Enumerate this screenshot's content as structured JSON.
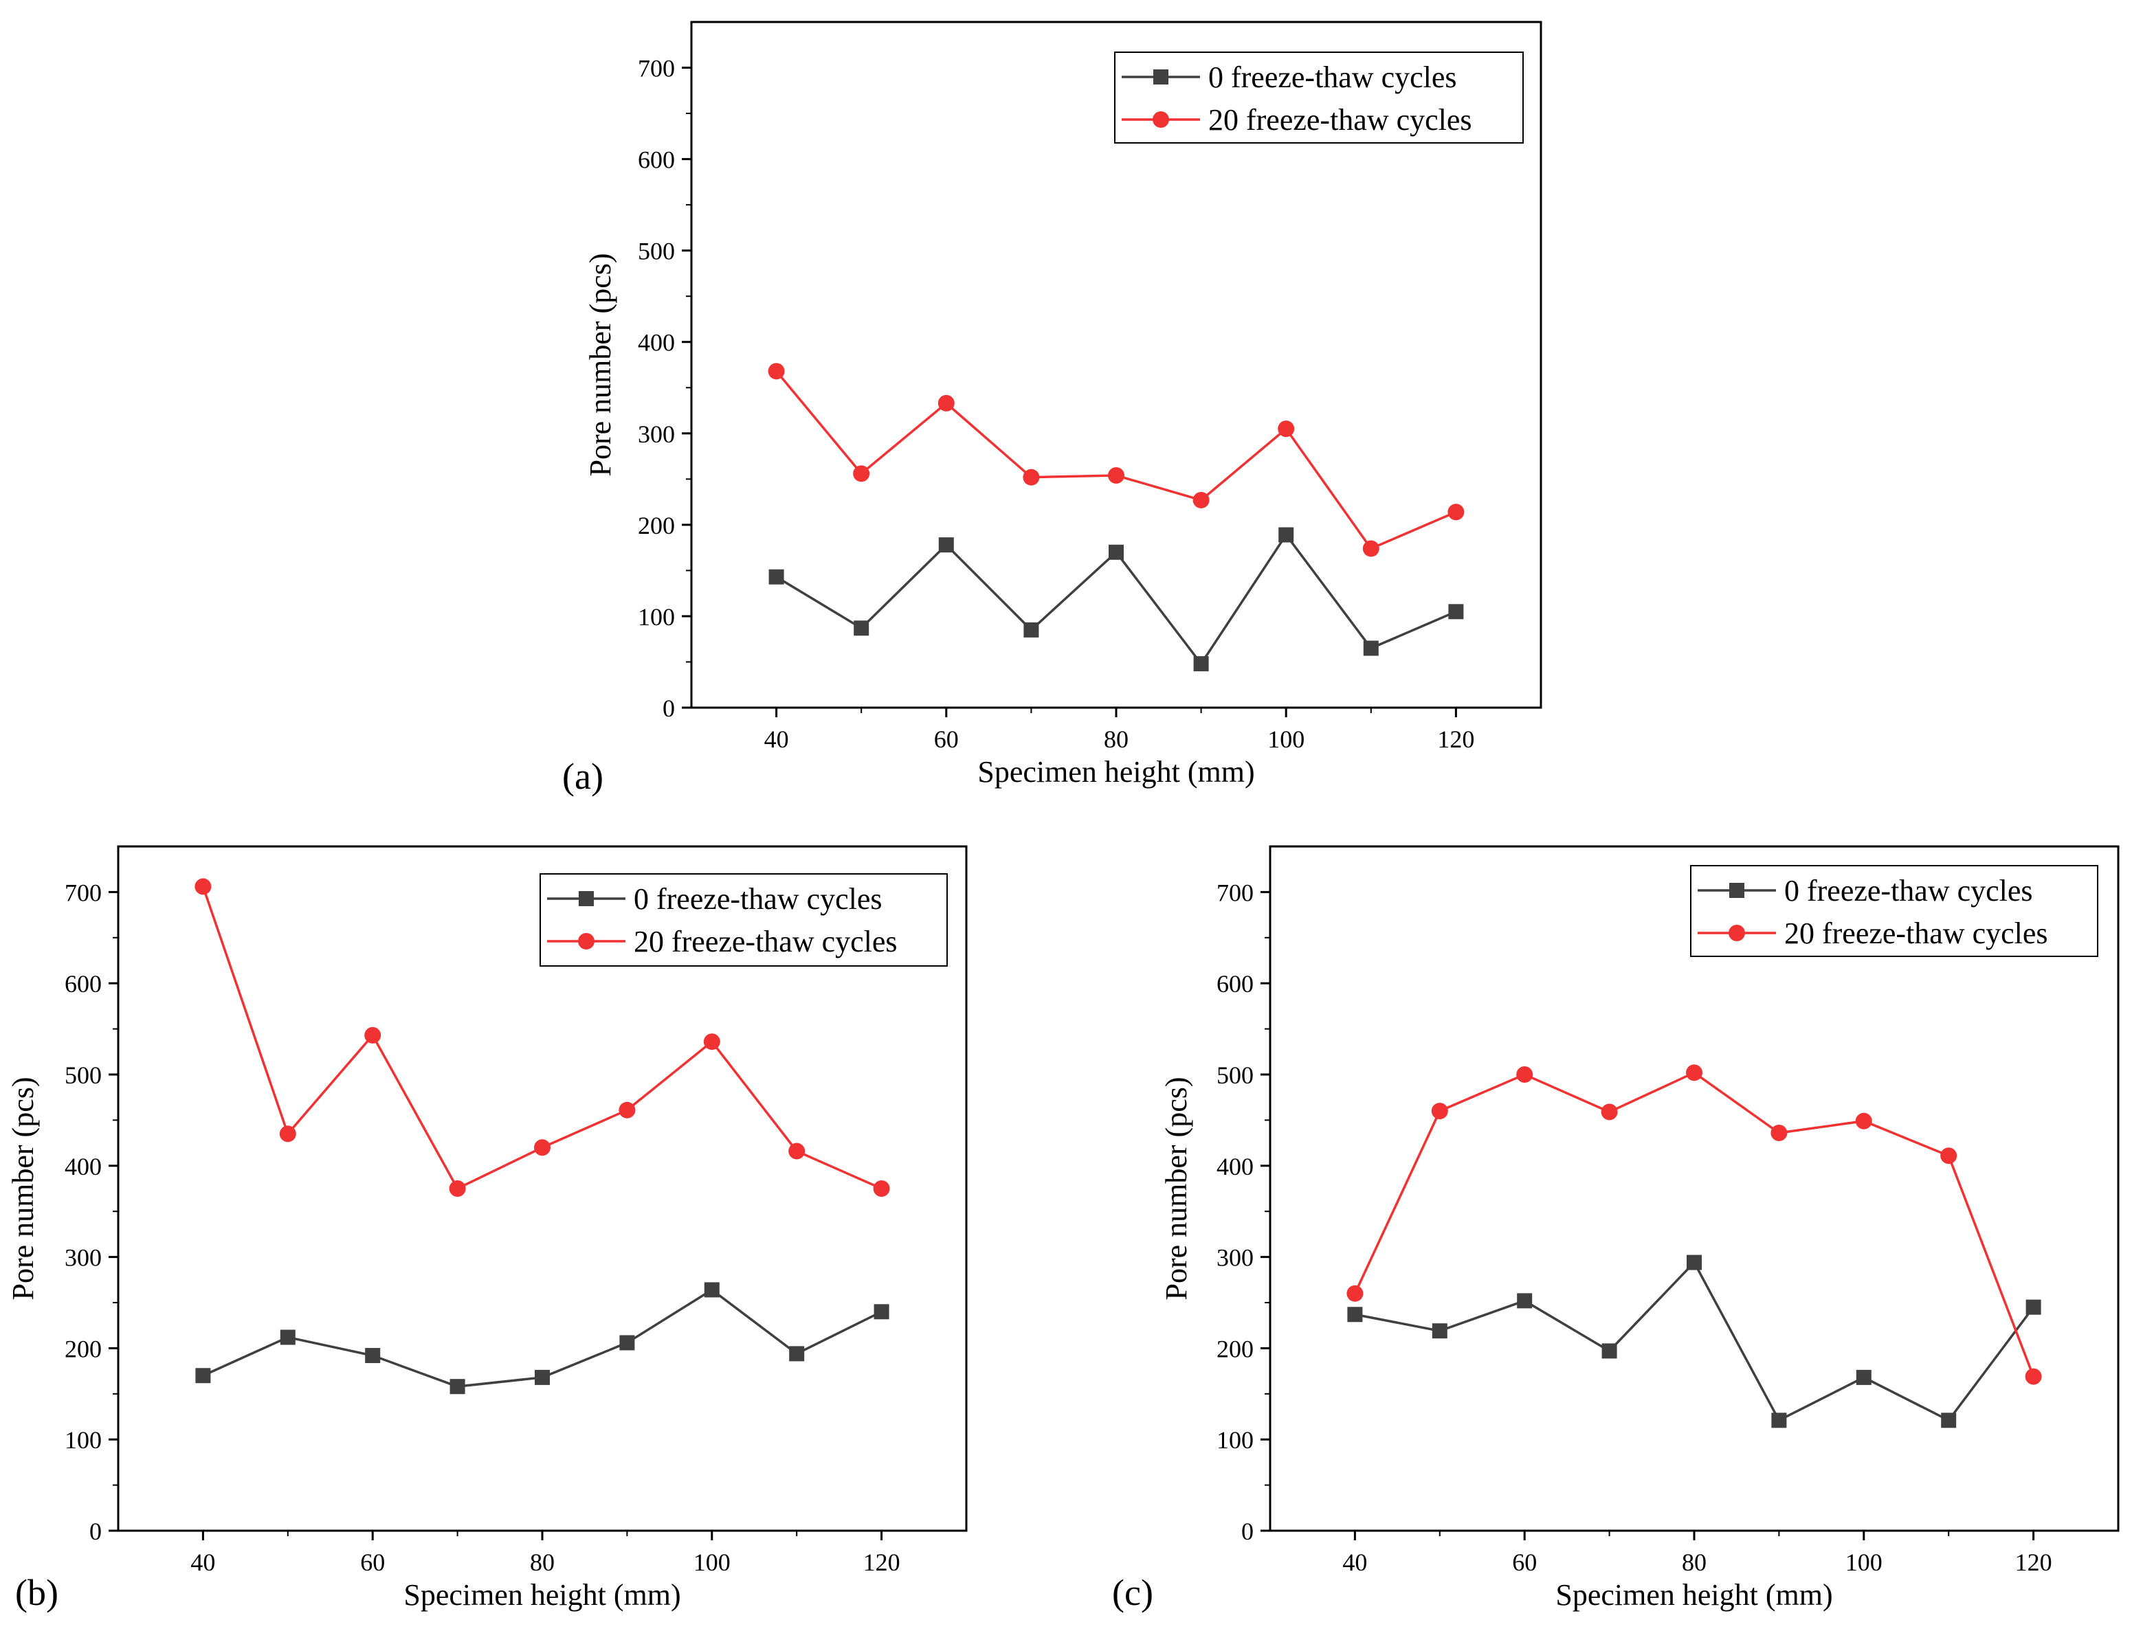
{
  "chart_data": [
    {
      "type": "line",
      "panel_label": "(a)",
      "title": "",
      "xlabel": "Specimen height (mm)",
      "ylabel": "Pore number (pcs)",
      "xlim": [
        30,
        130
      ],
      "ylim": [
        0,
        750
      ],
      "xticks": [
        40,
        60,
        80,
        100,
        120
      ],
      "yticks": [
        0,
        100,
        200,
        300,
        400,
        500,
        600,
        700
      ],
      "x": [
        40,
        50,
        60,
        70,
        80,
        90,
        100,
        110,
        120
      ],
      "legend_position": "top-right",
      "series": [
        {
          "name": "0 freeze-thaw cycles",
          "color": "#404040",
          "marker": "square",
          "values": [
            143,
            87,
            178,
            85,
            170,
            48,
            189,
            65,
            105
          ]
        },
        {
          "name": "20 freeze-thaw cycles",
          "color": "#f03232",
          "marker": "circle",
          "values": [
            368,
            256,
            333,
            252,
            254,
            227,
            305,
            174,
            214
          ]
        }
      ]
    },
    {
      "type": "line",
      "panel_label": "(b)",
      "title": "",
      "xlabel": "Specimen height (mm)",
      "ylabel": "Pore number (pcs)",
      "xlim": [
        30,
        130
      ],
      "ylim": [
        0,
        750
      ],
      "xticks": [
        40,
        60,
        80,
        100,
        120
      ],
      "yticks": [
        0,
        100,
        200,
        300,
        400,
        500,
        600,
        700
      ],
      "x": [
        40,
        50,
        60,
        70,
        80,
        90,
        100,
        110,
        120
      ],
      "legend_position": "top-right",
      "series": [
        {
          "name": "0 freeze-thaw cycles",
          "color": "#404040",
          "marker": "square",
          "values": [
            170,
            212,
            192,
            158,
            168,
            206,
            264,
            194,
            240
          ]
        },
        {
          "name": "20 freeze-thaw cycles",
          "color": "#f03232",
          "marker": "circle",
          "values": [
            706,
            435,
            543,
            375,
            420,
            461,
            536,
            416,
            375
          ]
        }
      ]
    },
    {
      "type": "line",
      "panel_label": "(c)",
      "title": "",
      "xlabel": "Specimen height (mm)",
      "ylabel": "Pore number (pcs)",
      "xlim": [
        30,
        130
      ],
      "ylim": [
        0,
        750
      ],
      "xticks": [
        40,
        60,
        80,
        100,
        120
      ],
      "yticks": [
        0,
        100,
        200,
        300,
        400,
        500,
        600,
        700
      ],
      "x": [
        40,
        50,
        60,
        70,
        80,
        90,
        100,
        110,
        120
      ],
      "legend_position": "top-right",
      "series": [
        {
          "name": "0 freeze-thaw cycles",
          "color": "#404040",
          "marker": "square",
          "values": [
            237,
            219,
            252,
            197,
            294,
            121,
            168,
            121,
            245
          ]
        },
        {
          "name": "20 freeze-thaw cycles",
          "color": "#f03232",
          "marker": "circle",
          "values": [
            260,
            460,
            500,
            459,
            502,
            436,
            449,
            411,
            169
          ]
        }
      ]
    }
  ]
}
